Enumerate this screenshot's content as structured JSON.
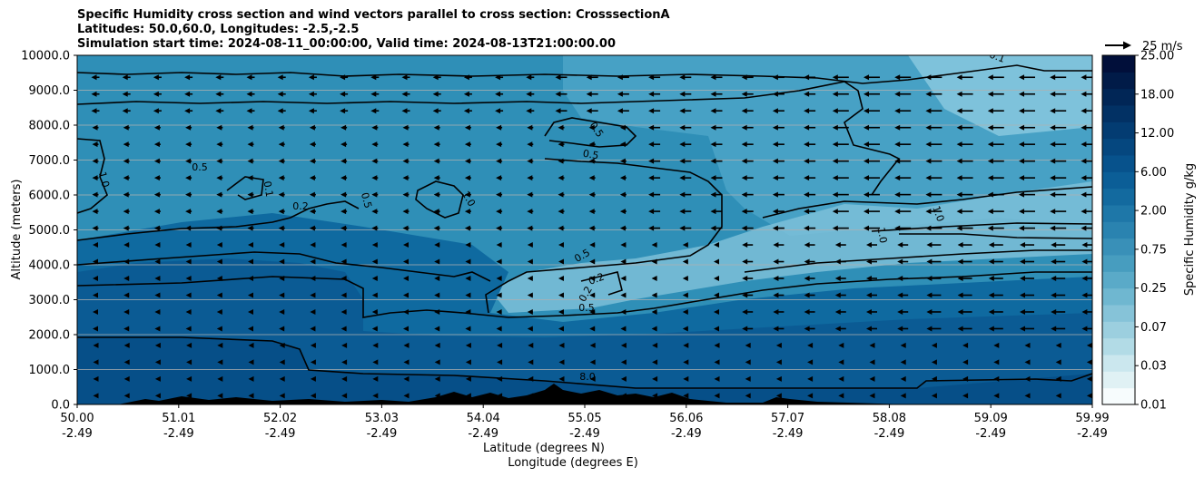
{
  "chart_data": {
    "type": "heatmap",
    "title_lines": [
      "Specific Humidity cross section and wind vectors parallel to cross section: CrosssectionA",
      "Latitudes: 50.0,60.0, Longitudes: -2.5,-2.5",
      "Simulation start time: 2024-08-11_00:00:00, Valid time: 2024-08-13T21:00:00.00"
    ],
    "xlabel": "Latitude (degrees N)",
    "xlabel2": "Longitude (degrees E)",
    "ylabel": "Altitude (meters)",
    "x_ticks": [
      {
        "lat": "50.00",
        "lon": "-2.49"
      },
      {
        "lat": "51.01",
        "lon": "-2.49"
      },
      {
        "lat": "52.02",
        "lon": "-2.49"
      },
      {
        "lat": "53.03",
        "lon": "-2.49"
      },
      {
        "lat": "54.04",
        "lon": "-2.49"
      },
      {
        "lat": "55.05",
        "lon": "-2.49"
      },
      {
        "lat": "56.06",
        "lon": "-2.49"
      },
      {
        "lat": "57.07",
        "lon": "-2.49"
      },
      {
        "lat": "58.08",
        "lon": "-2.49"
      },
      {
        "lat": "59.09",
        "lon": "-2.49"
      },
      {
        "lat": "59.99",
        "lon": "-2.49"
      }
    ],
    "y_ticks": [
      "0.0",
      "1000.0",
      "2000.0",
      "3000.0",
      "4000.0",
      "5000.0",
      "6000.0",
      "7000.0",
      "8000.0",
      "9000.0",
      "10000.0"
    ],
    "ylim": [
      0,
      10000
    ],
    "colorbar": {
      "label": "Specific Humidity g/kg",
      "tick_labels": [
        "0.01",
        "0.03",
        "0.07",
        "0.25",
        "0.75",
        "2.00",
        "6.00",
        "12.00",
        "18.00",
        "25.00"
      ],
      "colors": [
        "#f7fcfd",
        "#e0f1f4",
        "#cbe7ee",
        "#b2dbe6",
        "#9ccfdf",
        "#86c3d8",
        "#6fb7d0",
        "#5aaac8",
        "#479dbf",
        "#3990b8",
        "#2a83b0",
        "#1e77a8",
        "#136a9f",
        "#0b5e97",
        "#07528c",
        "#05477f",
        "#033c72",
        "#023164",
        "#012656",
        "#011b48",
        "#010f3a"
      ]
    },
    "humidity_bands": [
      {
        "alt_range": [
          0,
          2000
        ],
        "value_gkg": "6.00-12.00"
      },
      {
        "alt_range": [
          2000,
          4000
        ],
        "value_gkg": "2.00-6.00"
      },
      {
        "alt_range": [
          4000,
          10000
        ],
        "value_gkg": "0.07-2.00"
      }
    ],
    "contour_labels": [
      "0.1",
      "1.0",
      "0.5",
      "0.1",
      "0.5",
      "0.2",
      "1.0",
      "0.5",
      "0.5",
      "0.5",
      "0.2",
      "0.2",
      "0.5",
      "1.0",
      "1.0",
      "8.0"
    ],
    "wind_reference": {
      "label": "25 m/s",
      "speed_ms": 25
    },
    "wind_direction": "towards decreasing latitude (southward)",
    "grid": "horizontal gridlines on"
  }
}
